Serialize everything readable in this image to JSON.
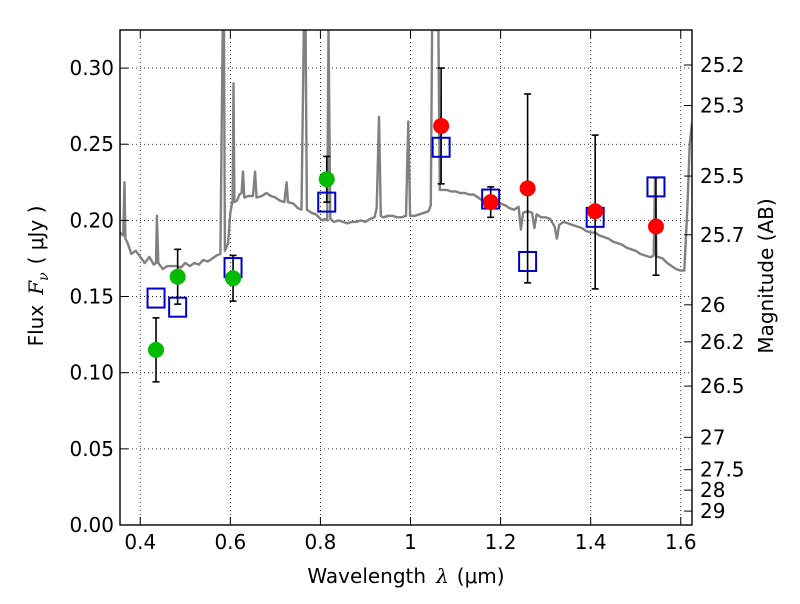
{
  "chart_data": {
    "type": "scatter",
    "title": "",
    "xlabel_prefix": "Wavelength",
    "xlabel_symbol": "λ",
    "xlabel_unit": "(μm)",
    "ylabel_prefix": "Flux",
    "ylabel_symbol": "F",
    "ylabel_subscript": "ν",
    "ylabel_unit": "( μJy )",
    "y2label": "Magnitude (AB)",
    "xlim": [
      0.355,
      1.625
    ],
    "ylim": [
      0.0,
      0.325
    ],
    "x_ticks": [
      0.4,
      0.6,
      0.8,
      1.0,
      1.2,
      1.4,
      1.6
    ],
    "x_tick_labels": [
      "0.4",
      "0.6",
      "0.8",
      "1",
      "1.2",
      "1.4",
      "1.6"
    ],
    "y_ticks": [
      0.0,
      0.05,
      0.1,
      0.15,
      0.2,
      0.25,
      0.3
    ],
    "y_tick_labels": [
      "0.00",
      "0.05",
      "0.10",
      "0.15",
      "0.20",
      "0.25",
      "0.30"
    ],
    "y2_ticks": [
      {
        "mag": 25.2,
        "label": "25.2"
      },
      {
        "mag": 25.3,
        "label": "25.3"
      },
      {
        "mag": 25.5,
        "label": "25.5"
      },
      {
        "mag": 25.7,
        "label": "25.7"
      },
      {
        "mag": 26.0,
        "label": "26"
      },
      {
        "mag": 26.2,
        "label": "26.2"
      },
      {
        "mag": 26.5,
        "label": "26.5"
      },
      {
        "mag": 27.0,
        "label": "27"
      },
      {
        "mag": 27.5,
        "label": "27.5"
      },
      {
        "mag": 28.0,
        "label": "28"
      },
      {
        "mag": 29.0,
        "label": "29"
      }
    ],
    "grid": true,
    "colors": {
      "template": "#808080",
      "optical": "#00bb00",
      "infrared": "#ff0000",
      "model": "#0000cc",
      "errorbar": "#000000"
    },
    "template_spectrum": [
      [
        0.355,
        0.192
      ],
      [
        0.362,
        0.19
      ],
      [
        0.365,
        0.225
      ],
      [
        0.367,
        0.188
      ],
      [
        0.372,
        0.185
      ],
      [
        0.38,
        0.178
      ],
      [
        0.39,
        0.18
      ],
      [
        0.4,
        0.176
      ],
      [
        0.41,
        0.172
      ],
      [
        0.42,
        0.176
      ],
      [
        0.43,
        0.171
      ],
      [
        0.435,
        0.172
      ],
      [
        0.437,
        0.203
      ],
      [
        0.44,
        0.172
      ],
      [
        0.45,
        0.168
      ],
      [
        0.46,
        0.17
      ],
      [
        0.48,
        0.17
      ],
      [
        0.49,
        0.169
      ],
      [
        0.5,
        0.172
      ],
      [
        0.51,
        0.17
      ],
      [
        0.52,
        0.172
      ],
      [
        0.53,
        0.171
      ],
      [
        0.54,
        0.174
      ],
      [
        0.55,
        0.173
      ],
      [
        0.56,
        0.175
      ],
      [
        0.57,
        0.177
      ],
      [
        0.578,
        0.178
      ],
      [
        0.583,
        0.325
      ],
      [
        0.586,
        0.325
      ],
      [
        0.588,
        0.18
      ],
      [
        0.595,
        0.185
      ],
      [
        0.6,
        0.205
      ],
      [
        0.605,
        0.213
      ],
      [
        0.607,
        0.29
      ],
      [
        0.609,
        0.212
      ],
      [
        0.615,
        0.213
      ],
      [
        0.62,
        0.217
      ],
      [
        0.625,
        0.218
      ],
      [
        0.628,
        0.232
      ],
      [
        0.631,
        0.215
      ],
      [
        0.64,
        0.216
      ],
      [
        0.65,
        0.216
      ],
      [
        0.655,
        0.232
      ],
      [
        0.658,
        0.215
      ],
      [
        0.67,
        0.216
      ],
      [
        0.68,
        0.218
      ],
      [
        0.69,
        0.216
      ],
      [
        0.7,
        0.215
      ],
      [
        0.71,
        0.213
      ],
      [
        0.72,
        0.212
      ],
      [
        0.725,
        0.225
      ],
      [
        0.728,
        0.212
      ],
      [
        0.74,
        0.211
      ],
      [
        0.75,
        0.208
      ],
      [
        0.758,
        0.207
      ],
      [
        0.763,
        0.325
      ],
      [
        0.767,
        0.325
      ],
      [
        0.77,
        0.207
      ],
      [
        0.78,
        0.205
      ],
      [
        0.79,
        0.204
      ],
      [
        0.8,
        0.201
      ],
      [
        0.805,
        0.2
      ],
      [
        0.81,
        0.201
      ],
      [
        0.815,
        0.2
      ],
      [
        0.818,
        0.325
      ],
      [
        0.822,
        0.201
      ],
      [
        0.83,
        0.199
      ],
      [
        0.84,
        0.2
      ],
      [
        0.85,
        0.199
      ],
      [
        0.86,
        0.198
      ],
      [
        0.87,
        0.199
      ],
      [
        0.88,
        0.199
      ],
      [
        0.89,
        0.2
      ],
      [
        0.9,
        0.199
      ],
      [
        0.91,
        0.201
      ],
      [
        0.92,
        0.202
      ],
      [
        0.925,
        0.208
      ],
      [
        0.93,
        0.268
      ],
      [
        0.934,
        0.203
      ],
      [
        0.94,
        0.202
      ],
      [
        0.95,
        0.203
      ],
      [
        0.96,
        0.203
      ],
      [
        0.97,
        0.202
      ],
      [
        0.98,
        0.202
      ],
      [
        0.99,
        0.203
      ],
      [
        0.995,
        0.265
      ],
      [
        0.999,
        0.203
      ],
      [
        1.01,
        0.203
      ],
      [
        1.02,
        0.204
      ],
      [
        1.03,
        0.205
      ],
      [
        1.04,
        0.206
      ],
      [
        1.045,
        0.21
      ],
      [
        1.048,
        0.325
      ],
      [
        1.058,
        0.325
      ],
      [
        1.062,
        0.325
      ],
      [
        1.065,
        0.22
      ],
      [
        1.07,
        0.22
      ],
      [
        1.08,
        0.22
      ],
      [
        1.09,
        0.219
      ],
      [
        1.1,
        0.219
      ],
      [
        1.11,
        0.218
      ],
      [
        1.12,
        0.218
      ],
      [
        1.13,
        0.217
      ],
      [
        1.14,
        0.217
      ],
      [
        1.15,
        0.215
      ],
      [
        1.16,
        0.213
      ],
      [
        1.17,
        0.214
      ],
      [
        1.18,
        0.213
      ],
      [
        1.19,
        0.211
      ],
      [
        1.2,
        0.211
      ],
      [
        1.21,
        0.21
      ],
      [
        1.22,
        0.208
      ],
      [
        1.23,
        0.207
      ],
      [
        1.24,
        0.209
      ],
      [
        1.245,
        0.194
      ],
      [
        1.25,
        0.205
      ],
      [
        1.26,
        0.206
      ],
      [
        1.27,
        0.205
      ],
      [
        1.275,
        0.195
      ],
      [
        1.28,
        0.204
      ],
      [
        1.29,
        0.202
      ],
      [
        1.3,
        0.202
      ],
      [
        1.31,
        0.201
      ],
      [
        1.32,
        0.196
      ],
      [
        1.325,
        0.188
      ],
      [
        1.33,
        0.197
      ],
      [
        1.34,
        0.199
      ],
      [
        1.35,
        0.198
      ],
      [
        1.36,
        0.197
      ],
      [
        1.37,
        0.196
      ],
      [
        1.38,
        0.195
      ],
      [
        1.39,
        0.193
      ],
      [
        1.4,
        0.192
      ],
      [
        1.41,
        0.192
      ],
      [
        1.42,
        0.19
      ],
      [
        1.43,
        0.189
      ],
      [
        1.44,
        0.188
      ],
      [
        1.45,
        0.186
      ],
      [
        1.46,
        0.185
      ],
      [
        1.47,
        0.184
      ],
      [
        1.48,
        0.182
      ],
      [
        1.49,
        0.181
      ],
      [
        1.5,
        0.18
      ],
      [
        1.51,
        0.178
      ],
      [
        1.52,
        0.177
      ],
      [
        1.53,
        0.176
      ],
      [
        1.535,
        0.176
      ],
      [
        1.54,
        0.177
      ],
      [
        1.543,
        0.228
      ],
      [
        1.546,
        0.176
      ],
      [
        1.55,
        0.176
      ],
      [
        1.56,
        0.175
      ],
      [
        1.57,
        0.172
      ],
      [
        1.58,
        0.17
      ],
      [
        1.59,
        0.168
      ],
      [
        1.6,
        0.167
      ],
      [
        1.608,
        0.167
      ],
      [
        1.615,
        0.21
      ],
      [
        1.62,
        0.25
      ],
      [
        1.625,
        0.264
      ]
    ],
    "series": [
      {
        "marker": "circle",
        "color": "#00bb00",
        "points": [
          {
            "x": 0.435,
            "y": 0.115,
            "err_lo": 0.021,
            "err_hi": 0.021
          },
          {
            "x": 0.483,
            "y": 0.163,
            "err_lo": 0.018,
            "err_hi": 0.018
          },
          {
            "x": 0.606,
            "y": 0.162,
            "err_lo": 0.015,
            "err_hi": 0.015
          },
          {
            "x": 0.814,
            "y": 0.227,
            "err_lo": 0.015,
            "err_hi": 0.015
          }
        ]
      },
      {
        "marker": "circle",
        "color": "#ff0000",
        "points": [
          {
            "x": 1.068,
            "y": 0.262,
            "err_lo": 0.038,
            "err_hi": 0.038
          },
          {
            "x": 1.178,
            "y": 0.212,
            "err_lo": 0.01,
            "err_hi": 0.01
          },
          {
            "x": 1.26,
            "y": 0.221,
            "err_lo": 0.062,
            "err_hi": 0.062
          },
          {
            "x": 1.41,
            "y": 0.206,
            "err_lo": 0.051,
            "err_hi": 0.05
          },
          {
            "x": 1.545,
            "y": 0.196,
            "err_lo": 0.032,
            "err_hi": 0.032
          }
        ]
      },
      {
        "marker": "square",
        "color": "#0000cc",
        "points": [
          {
            "x": 0.435,
            "y": 0.149
          },
          {
            "x": 0.483,
            "y": 0.143
          },
          {
            "x": 0.606,
            "y": 0.169
          },
          {
            "x": 0.814,
            "y": 0.212
          },
          {
            "x": 1.068,
            "y": 0.248
          },
          {
            "x": 1.178,
            "y": 0.214
          },
          {
            "x": 1.26,
            "y": 0.173
          },
          {
            "x": 1.41,
            "y": 0.202
          },
          {
            "x": 1.545,
            "y": 0.222
          }
        ]
      }
    ]
  }
}
